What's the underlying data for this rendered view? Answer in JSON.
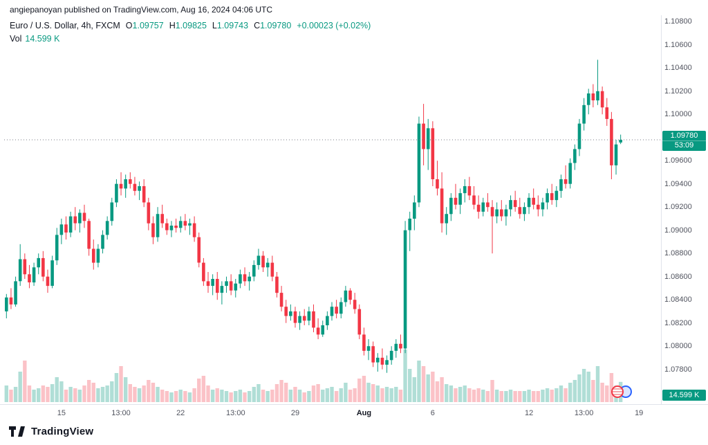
{
  "attribution": "angiepanoyan published on TradingView.com, Aug 16, 2024 04:06 UTC",
  "header": {
    "symbol": "Euro / U.S. Dollar, 4h, FXCM",
    "ohlc": [
      {
        "k": "O",
        "v": "1.09757"
      },
      {
        "k": "H",
        "v": "1.09825"
      },
      {
        "k": "L",
        "v": "1.09743"
      },
      {
        "k": "C",
        "v": "1.09780"
      }
    ],
    "change": "+0.00023 (+0.02%)",
    "vol_label": "Vol",
    "vol_value": "14.599 K"
  },
  "badge": {
    "price": "1.09780",
    "countdown": "53:09"
  },
  "volume_badge": "14.599 K",
  "logo": {
    "text": "TradingView"
  },
  "icons": {
    "events": [
      "us-event-flag-icon",
      "eu-event-flag-icon"
    ],
    "logo": "tradingview-logo-icon"
  },
  "colors": {
    "up": "#089981",
    "down": "#f23645",
    "vol_up": "rgba(8,153,129,0.32)",
    "vol_down": "rgba(242,54,69,0.30)",
    "badge_bg": "#089981",
    "vol_badge_bg": "#089981",
    "last_price_line": "#787b86",
    "border": "#e0e3eb",
    "axis_text": "#50535e",
    "text_dark": "#131722"
  },
  "chart_data": {
    "type": "candlestick",
    "symbol": "EUR/USD",
    "title": "Euro / U.S. Dollar, 4h, FXCM",
    "timeframe": "4h",
    "exchange": "FXCM",
    "legend_position": "top-left",
    "grid": false,
    "last_bar": {
      "open": 1.09757,
      "high": 1.09825,
      "low": 1.09743,
      "close": 1.0978,
      "change": 0.00023,
      "change_pct": 0.02,
      "volume": 14599
    },
    "price_axis": {
      "min": 1.078,
      "max": 1.108,
      "step": 0.002,
      "labels": [
        "1.10800",
        "1.10600",
        "1.10400",
        "1.10200",
        "1.10000",
        "1.09800",
        "1.09600",
        "1.09400",
        "1.09200",
        "1.09000",
        "1.08800",
        "1.08600",
        "1.08400",
        "1.08200",
        "1.08000",
        "1.07800"
      ]
    },
    "time_ticks": [
      {
        "i": 12,
        "label": "15",
        "bold": false
      },
      {
        "i": 25,
        "label": "13:00",
        "bold": false
      },
      {
        "i": 38,
        "label": "22",
        "bold": false
      },
      {
        "i": 50,
        "label": "13:00",
        "bold": false
      },
      {
        "i": 63,
        "label": "29",
        "bold": false
      },
      {
        "i": 78,
        "label": "Aug",
        "bold": true
      },
      {
        "i": 93,
        "label": "6",
        "bold": false
      },
      {
        "i": 114,
        "label": "12",
        "bold": false
      },
      {
        "i": 126,
        "label": "13:00",
        "bold": false
      },
      {
        "i": 138,
        "label": "19",
        "bold": false
      }
    ],
    "candles_format": [
      "open",
      "high",
      "low",
      "close",
      "volume"
    ],
    "candles": [
      [
        1.083,
        1.0845,
        1.0824,
        1.0842,
        12000
      ],
      [
        1.0842,
        1.085,
        1.0832,
        1.0836,
        9000
      ],
      [
        1.0836,
        1.086,
        1.0834,
        1.0856,
        11000
      ],
      [
        1.0856,
        1.0888,
        1.0852,
        1.0875,
        22000
      ],
      [
        1.0875,
        1.088,
        1.0858,
        1.0862,
        30000
      ],
      [
        1.0862,
        1.087,
        1.085,
        1.0855,
        12000
      ],
      [
        1.0855,
        1.0872,
        1.0852,
        1.0868,
        9000
      ],
      [
        1.0868,
        1.088,
        1.0862,
        1.0876,
        10000
      ],
      [
        1.0876,
        1.0882,
        1.0856,
        1.086,
        12000
      ],
      [
        1.086,
        1.0866,
        1.0846,
        1.0852,
        11000
      ],
      [
        1.0852,
        1.0878,
        1.085,
        1.0874,
        13000
      ],
      [
        1.0874,
        1.0902,
        1.087,
        1.0896,
        18000
      ],
      [
        1.0896,
        1.091,
        1.0888,
        1.0905,
        15000
      ],
      [
        1.0905,
        1.0912,
        1.0892,
        1.0898,
        9000
      ],
      [
        1.0898,
        1.0916,
        1.0894,
        1.0912,
        11000
      ],
      [
        1.0912,
        1.092,
        1.09,
        1.0906,
        10000
      ],
      [
        1.0906,
        1.0918,
        1.0898,
        1.0915,
        9000
      ],
      [
        1.0915,
        1.0922,
        1.0902,
        1.0908,
        12000
      ],
      [
        1.0908,
        1.091,
        1.0878,
        1.0884,
        16000
      ],
      [
        1.0884,
        1.0892,
        1.0866,
        1.0872,
        14000
      ],
      [
        1.0872,
        1.0888,
        1.0868,
        1.0884,
        10000
      ],
      [
        1.0884,
        1.09,
        1.088,
        1.0896,
        11000
      ],
      [
        1.0896,
        1.0912,
        1.0892,
        1.0908,
        12000
      ],
      [
        1.0908,
        1.0928,
        1.0904,
        1.0924,
        15000
      ],
      [
        1.0924,
        1.0944,
        1.092,
        1.094,
        21000
      ],
      [
        1.094,
        1.095,
        1.093,
        1.0936,
        26000
      ],
      [
        1.0936,
        1.0948,
        1.0928,
        1.0944,
        18000
      ],
      [
        1.0944,
        1.095,
        1.0936,
        1.094,
        13000
      ],
      [
        1.094,
        1.0946,
        1.093,
        1.0934,
        11000
      ],
      [
        1.0934,
        1.0942,
        1.0926,
        1.0938,
        10000
      ],
      [
        1.0938,
        1.0944,
        1.092,
        1.0924,
        12000
      ],
      [
        1.0924,
        1.0928,
        1.09,
        1.0906,
        16000
      ],
      [
        1.0906,
        1.0912,
        1.0888,
        1.0894,
        14000
      ],
      [
        1.0894,
        1.092,
        1.089,
        1.0914,
        11000
      ],
      [
        1.0914,
        1.0922,
        1.0902,
        1.0906,
        9000
      ],
      [
        1.0906,
        1.091,
        1.0896,
        1.09,
        8000
      ],
      [
        1.09,
        1.0908,
        1.0894,
        1.0904,
        7000
      ],
      [
        1.0904,
        1.091,
        1.0898,
        1.0902,
        8000
      ],
      [
        1.0902,
        1.0912,
        1.0898,
        1.0908,
        9000
      ],
      [
        1.0908,
        1.0914,
        1.09,
        1.0904,
        8000
      ],
      [
        1.0904,
        1.091,
        1.0896,
        1.0906,
        7000
      ],
      [
        1.0906,
        1.0912,
        1.089,
        1.0894,
        10000
      ],
      [
        1.0894,
        1.0898,
        1.0868,
        1.0872,
        17000
      ],
      [
        1.0872,
        1.0876,
        1.0852,
        1.0856,
        19000
      ],
      [
        1.0856,
        1.0864,
        1.0846,
        1.0852,
        12000
      ],
      [
        1.0852,
        1.0862,
        1.0844,
        1.0858,
        9000
      ],
      [
        1.0858,
        1.0864,
        1.084,
        1.0846,
        10000
      ],
      [
        1.0846,
        1.0856,
        1.0836,
        1.0852,
        9000
      ],
      [
        1.0852,
        1.086,
        1.0846,
        1.0856,
        8000
      ],
      [
        1.0856,
        1.0862,
        1.0844,
        1.0848,
        7000
      ],
      [
        1.0848,
        1.0858,
        1.0842,
        1.0854,
        8000
      ],
      [
        1.0854,
        1.0866,
        1.085,
        1.0862,
        9000
      ],
      [
        1.0862,
        1.0868,
        1.0852,
        1.0856,
        7000
      ],
      [
        1.0856,
        1.0864,
        1.0848,
        1.086,
        8000
      ],
      [
        1.086,
        1.0874,
        1.0856,
        1.087,
        11000
      ],
      [
        1.087,
        1.0884,
        1.0866,
        1.0878,
        13000
      ],
      [
        1.0878,
        1.0882,
        1.0864,
        1.0868,
        9000
      ],
      [
        1.0868,
        1.0876,
        1.086,
        1.0872,
        8000
      ],
      [
        1.0872,
        1.0878,
        1.0856,
        1.086,
        9000
      ],
      [
        1.086,
        1.0864,
        1.0842,
        1.0846,
        13000
      ],
      [
        1.0846,
        1.0852,
        1.083,
        1.0834,
        16000
      ],
      [
        1.0834,
        1.084,
        1.082,
        1.0826,
        14000
      ],
      [
        1.0826,
        1.0836,
        1.0822,
        1.083,
        9000
      ],
      [
        1.083,
        1.0834,
        1.0816,
        1.082,
        11000
      ],
      [
        1.082,
        1.083,
        1.0814,
        1.0826,
        9000
      ],
      [
        1.0826,
        1.0832,
        1.0818,
        1.0822,
        7000
      ],
      [
        1.0822,
        1.0834,
        1.0818,
        1.083,
        8000
      ],
      [
        1.083,
        1.0836,
        1.0812,
        1.0816,
        12000
      ],
      [
        1.0816,
        1.0824,
        1.0806,
        1.081,
        13000
      ],
      [
        1.081,
        1.0822,
        1.0808,
        1.0818,
        9000
      ],
      [
        1.0818,
        1.083,
        1.0814,
        1.0826,
        10000
      ],
      [
        1.0826,
        1.0838,
        1.0822,
        1.0834,
        11000
      ],
      [
        1.0834,
        1.084,
        1.0824,
        1.0828,
        8000
      ],
      [
        1.0828,
        1.0842,
        1.0824,
        1.0838,
        10000
      ],
      [
        1.0838,
        1.0852,
        1.0834,
        1.0848,
        14000
      ],
      [
        1.0848,
        1.085,
        1.0836,
        1.084,
        9000
      ],
      [
        1.084,
        1.0846,
        1.0828,
        1.0832,
        10000
      ],
      [
        1.0832,
        1.0836,
        1.0806,
        1.081,
        17000
      ],
      [
        1.081,
        1.0816,
        1.0792,
        1.0796,
        19000
      ],
      [
        1.0796,
        1.0806,
        1.0788,
        1.08,
        14000
      ],
      [
        1.08,
        1.0804,
        1.0782,
        1.0786,
        13000
      ],
      [
        1.0786,
        1.0794,
        1.0778,
        1.079,
        12000
      ],
      [
        1.079,
        1.0798,
        1.078,
        1.0784,
        10000
      ],
      [
        1.0784,
        1.0792,
        1.0777,
        1.0788,
        11000
      ],
      [
        1.0788,
        1.08,
        1.0784,
        1.0796,
        10000
      ],
      [
        1.0796,
        1.0806,
        1.079,
        1.0802,
        11000
      ],
      [
        1.0802,
        1.081,
        1.0794,
        1.0798,
        9000
      ],
      [
        1.0798,
        1.0908,
        1.0794,
        1.09,
        38000
      ],
      [
        1.09,
        1.0916,
        1.0882,
        1.091,
        24000
      ],
      [
        1.091,
        1.093,
        1.09,
        1.0924,
        18000
      ],
      [
        1.0924,
        1.0998,
        1.092,
        1.0992,
        30000
      ],
      [
        1.0992,
        1.1009,
        1.0956,
        1.097,
        26000
      ],
      [
        1.097,
        1.0996,
        1.0952,
        1.0988,
        20000
      ],
      [
        1.0988,
        1.0994,
        1.0938,
        1.0944,
        22000
      ],
      [
        1.0944,
        1.096,
        1.093,
        1.0936,
        15000
      ],
      [
        1.0936,
        1.095,
        1.0898,
        1.0906,
        18000
      ],
      [
        1.0906,
        1.092,
        1.0896,
        1.0914,
        13000
      ],
      [
        1.0914,
        1.0932,
        1.0908,
        1.0928,
        12000
      ],
      [
        1.0928,
        1.094,
        1.0918,
        1.0922,
        10000
      ],
      [
        1.0922,
        1.0936,
        1.0914,
        1.0932,
        11000
      ],
      [
        1.0932,
        1.0944,
        1.0924,
        1.0938,
        12000
      ],
      [
        1.0938,
        1.0946,
        1.0926,
        1.093,
        10000
      ],
      [
        1.093,
        1.0938,
        1.0918,
        1.0922,
        9000
      ],
      [
        1.0922,
        1.093,
        1.091,
        1.0916,
        10000
      ],
      [
        1.0916,
        1.0928,
        1.0912,
        1.0924,
        9000
      ],
      [
        1.0924,
        1.0932,
        1.0916,
        1.092,
        8000
      ],
      [
        1.092,
        1.0926,
        1.088,
        1.0912,
        16000
      ],
      [
        1.0912,
        1.0924,
        1.0906,
        1.0918,
        9000
      ],
      [
        1.0918,
        1.0926,
        1.0908,
        1.0912,
        8000
      ],
      [
        1.0912,
        1.0922,
        1.0904,
        1.0918,
        8000
      ],
      [
        1.0918,
        1.093,
        1.0912,
        1.0926,
        9000
      ],
      [
        1.0926,
        1.0934,
        1.0916,
        1.092,
        8000
      ],
      [
        1.092,
        1.0928,
        1.091,
        1.0914,
        8000
      ],
      [
        1.0914,
        1.0924,
        1.0908,
        1.092,
        8000
      ],
      [
        1.092,
        1.0932,
        1.0914,
        1.0928,
        9000
      ],
      [
        1.0928,
        1.0936,
        1.0918,
        1.0922,
        8000
      ],
      [
        1.0922,
        1.093,
        1.0912,
        1.0918,
        8000
      ],
      [
        1.0918,
        1.0928,
        1.0912,
        1.0924,
        9000
      ],
      [
        1.0924,
        1.0936,
        1.0918,
        1.0932,
        10000
      ],
      [
        1.0932,
        1.094,
        1.0922,
        1.0926,
        9000
      ],
      [
        1.0926,
        1.0938,
        1.092,
        1.0934,
        10000
      ],
      [
        1.0934,
        1.0948,
        1.0928,
        1.0944,
        12000
      ],
      [
        1.0944,
        1.0956,
        1.0936,
        1.094,
        10000
      ],
      [
        1.094,
        1.0962,
        1.0936,
        1.0958,
        14000
      ],
      [
        1.0958,
        1.0974,
        1.0952,
        1.097,
        16000
      ],
      [
        1.097,
        1.0996,
        1.0964,
        1.0992,
        20000
      ],
      [
        1.0992,
        1.1014,
        1.0986,
        1.1008,
        24000
      ],
      [
        1.1008,
        1.1022,
        1.1,
        1.1018,
        22000
      ],
      [
        1.1018,
        1.1026,
        1.1006,
        1.1012,
        16000
      ],
      [
        1.1012,
        1.1047,
        1.1008,
        1.102,
        26000
      ],
      [
        1.102,
        1.1024,
        1.1,
        1.1006,
        14000
      ],
      [
        1.1006,
        1.1014,
        1.099,
        1.0996,
        12000
      ],
      [
        1.0996,
        1.1002,
        1.0944,
        1.0956,
        21000
      ],
      [
        1.0956,
        1.0978,
        1.0948,
        1.0974,
        12000
      ],
      [
        1.09757,
        1.09825,
        1.09743,
        1.0978,
        14599
      ]
    ]
  }
}
